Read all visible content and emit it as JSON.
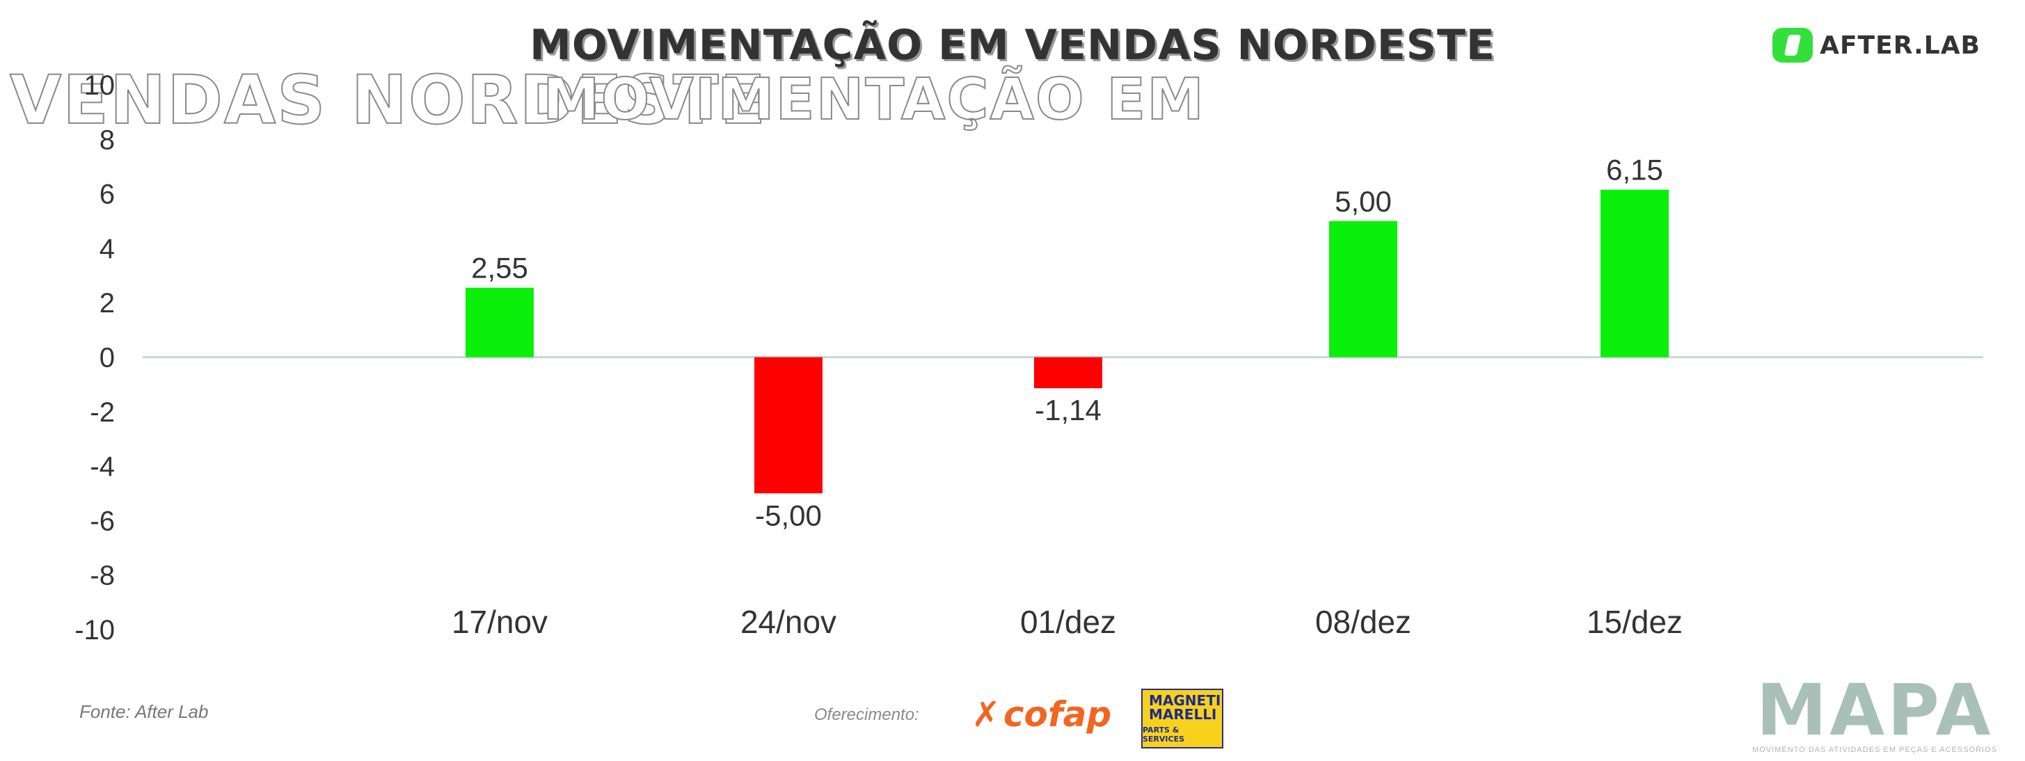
{
  "title": "MOVIMENTAÇÃO EM VENDAS NORDESTE",
  "ghost_left": "VENDAS NORDESTE",
  "ghost_right": "MOVIMENTAÇÃO EM",
  "brand_top": {
    "name": "AFTER.LAB",
    "icon": "afterlab-logo-icon",
    "color": "#33e03a"
  },
  "footer": {
    "source": "Fonte: After Lab",
    "support_label": "Oferecimento:",
    "cofap": "cofap",
    "magneti_title": "MAGNETI MARELLI",
    "magneti_sub": "PARTS & SERVICES",
    "mapa": "MAPA",
    "mapa_tagline": "MOVIMENTO DAS ATIVIDADES EM PEÇAS E ACESSÓRIOS"
  },
  "colors": {
    "positive": "#0af00a",
    "negative": "#ff0000",
    "axis": "#c8d6d6",
    "text": "#333333"
  },
  "chart_data": {
    "type": "bar",
    "title": "MOVIMENTAÇÃO EM VENDAS NORDESTE",
    "categories": [
      "17/nov",
      "24/nov",
      "01/dez",
      "08/dez",
      "15/dez"
    ],
    "values": [
      2.55,
      -5.0,
      -1.14,
      5.0,
      6.15
    ],
    "value_labels": [
      "2,55",
      "-5,00",
      "-1,14",
      "5,00",
      "6,15"
    ],
    "y_ticks": [
      "10",
      "8",
      "6",
      "4",
      "2",
      "0",
      "-2",
      "-4",
      "-6",
      "-8",
      "-10"
    ],
    "ylim": [
      -10,
      10
    ],
    "xlabel": "",
    "ylabel": "",
    "grid": false,
    "legend": "none"
  }
}
